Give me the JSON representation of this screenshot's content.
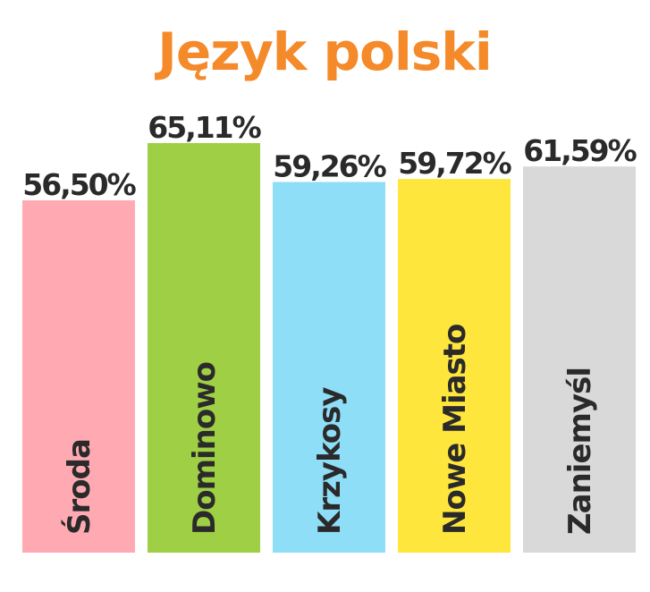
{
  "chart_data": {
    "type": "bar",
    "title": "Język polski",
    "title_color": "#f58a2a",
    "categories": [
      "Środa",
      "Dominowo",
      "Krzykosy",
      "Nowe Miasto",
      "Zaniemyśl"
    ],
    "values": [
      56.5,
      65.11,
      59.26,
      59.72,
      61.59
    ],
    "value_labels": [
      "56,50%",
      "65,11%",
      "59,26%",
      "59,72%",
      "61,59%"
    ],
    "colors": [
      "#ffaab3",
      "#9fcf45",
      "#8fdef8",
      "#ffe63c",
      "#d9d9d9"
    ],
    "ylim": [
      0,
      65.11
    ],
    "grid": false,
    "legend": "none",
    "xlabel": "",
    "ylabel": ""
  }
}
